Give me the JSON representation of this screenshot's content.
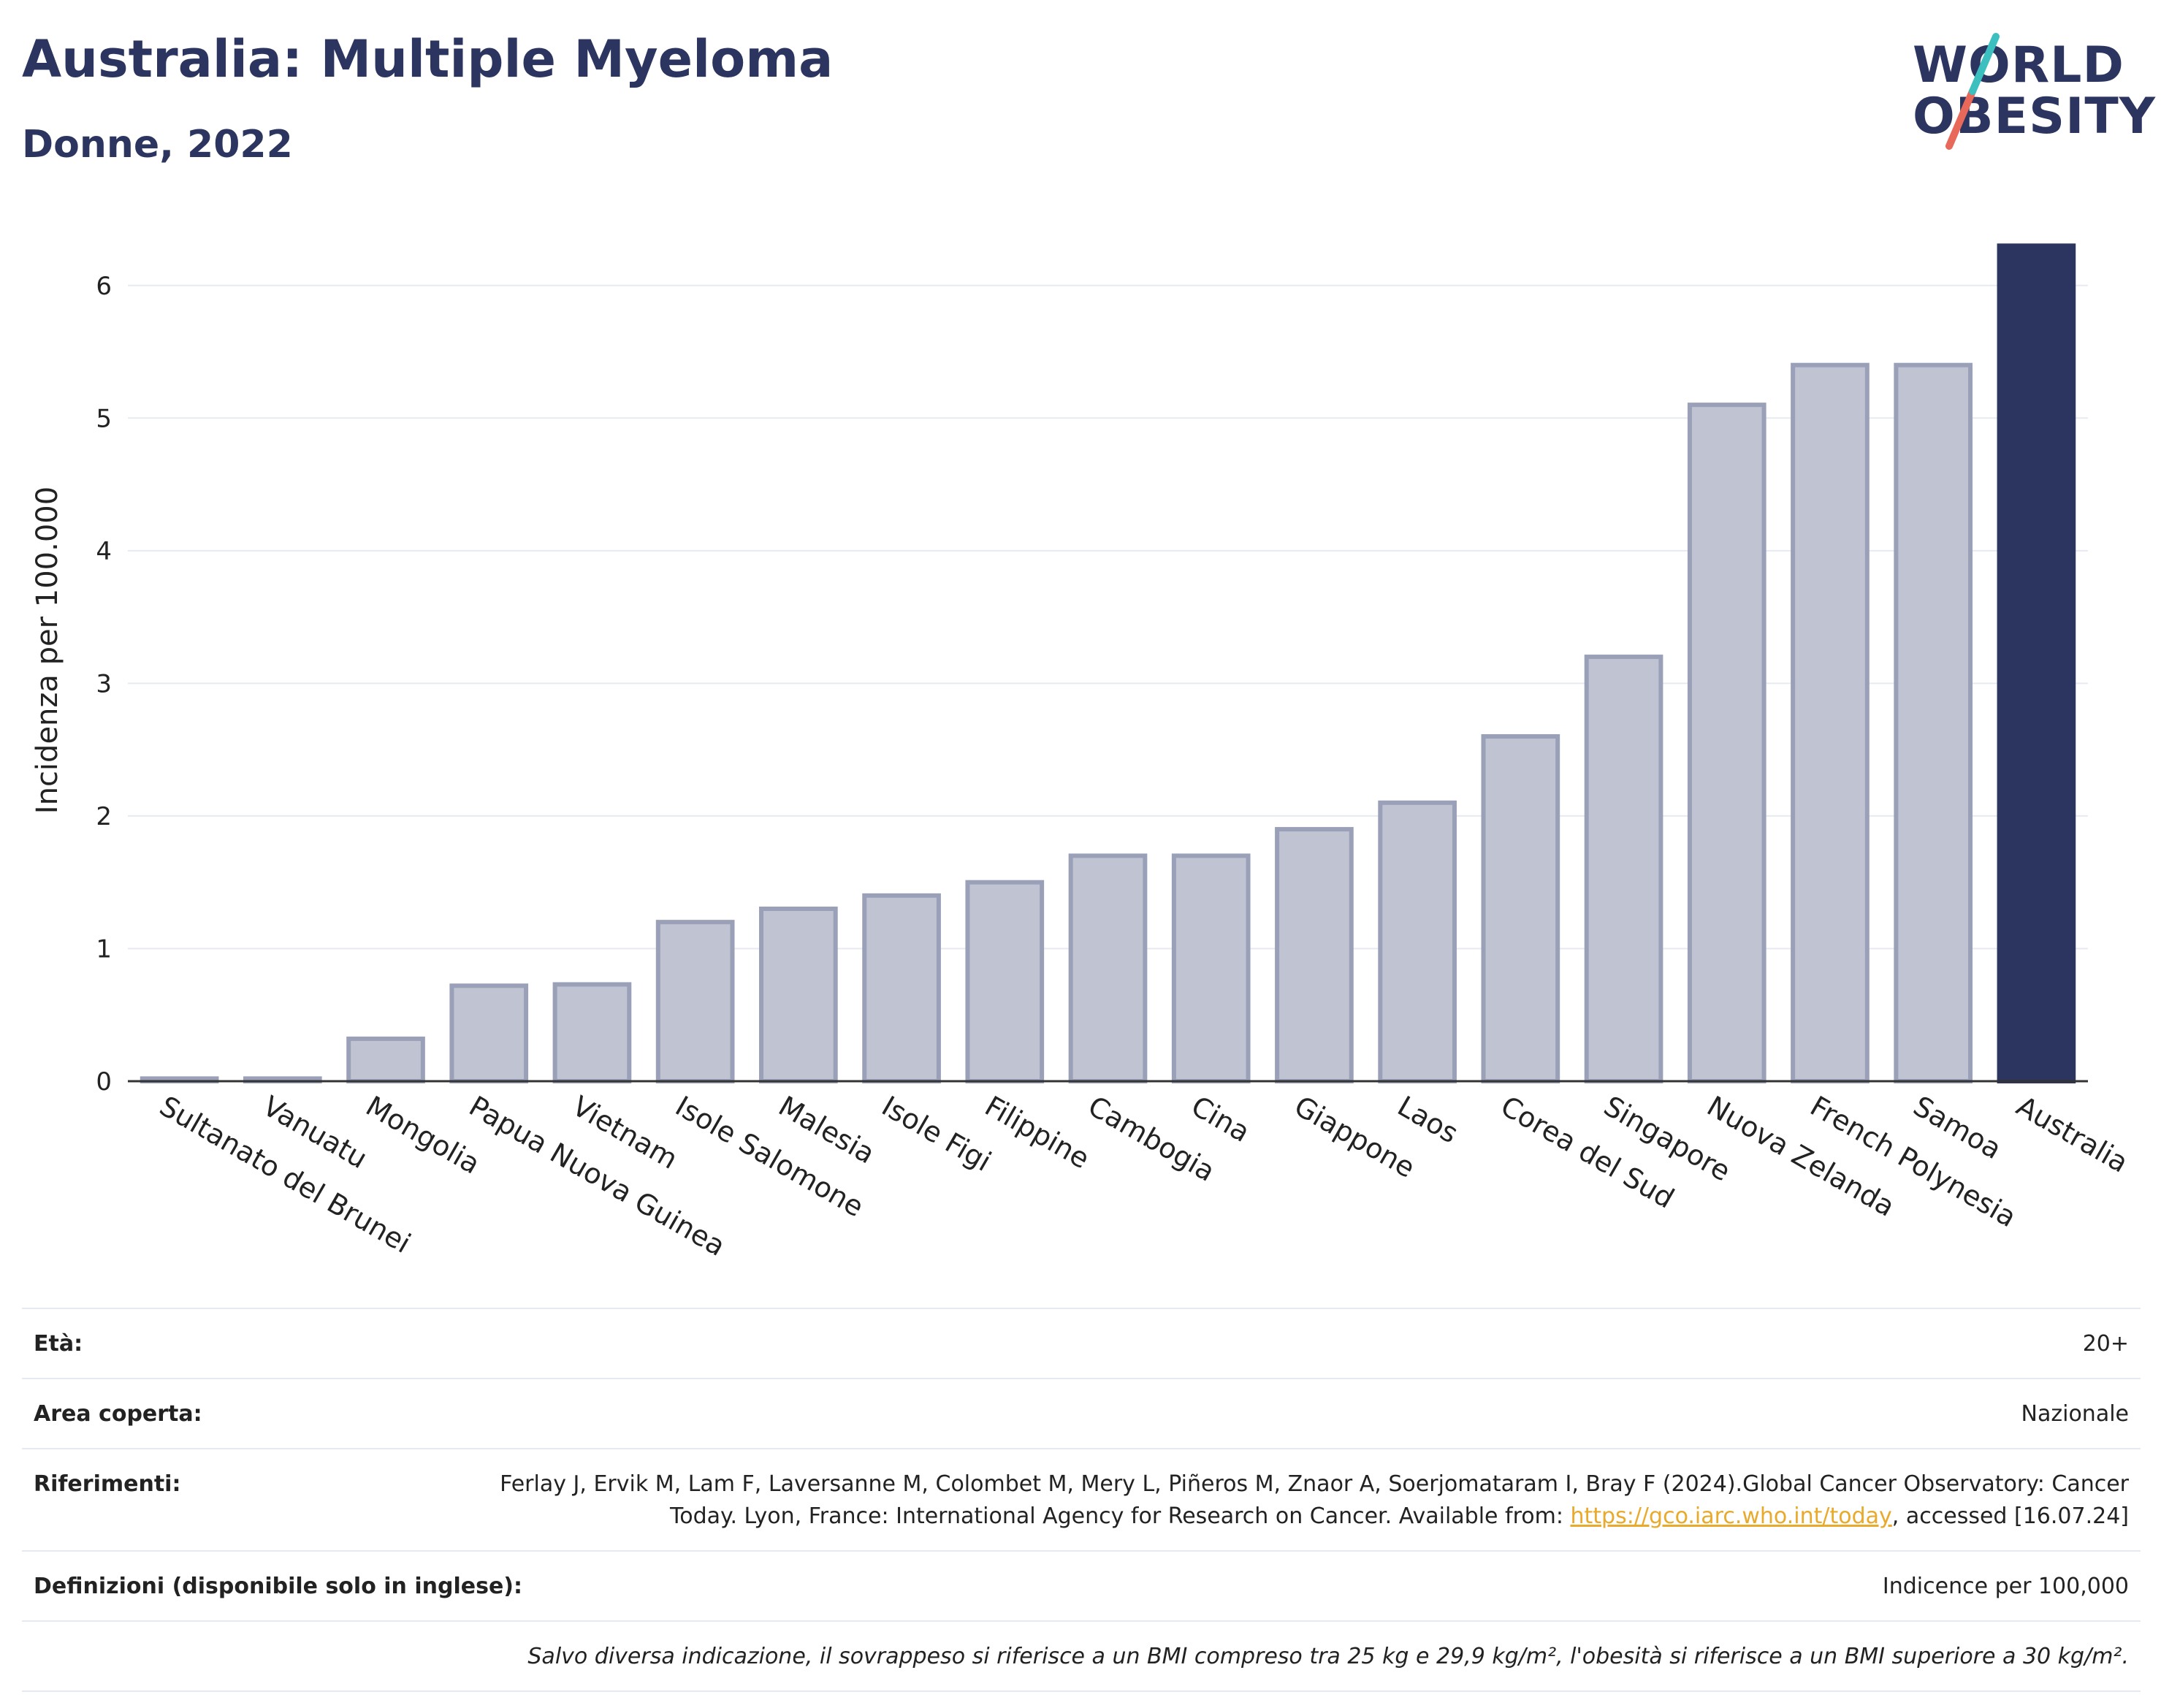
{
  "header": {
    "title": "Australia: Multiple Myeloma",
    "subtitle": "Donne, 2022"
  },
  "logo": {
    "line1": "WORLD",
    "line2": "OBESITY"
  },
  "chart_data": {
    "type": "bar",
    "ylabel": "Incidenza per 100.000",
    "xlabel": "",
    "ylim": [
      0,
      6.5
    ],
    "yticks": [
      0,
      1,
      2,
      3,
      4,
      5,
      6
    ],
    "grid": true,
    "categories": [
      "Sultanato del Brunei",
      "Vanuatu",
      "Mongolia",
      "Papua Nuova Guinea",
      "Vietnam",
      "Isole Salomone",
      "Malesia",
      "Isole Figi",
      "Filippine",
      "Cambogia",
      "Cina",
      "Giappone",
      "Laos",
      "Corea del Sud",
      "Singapore",
      "Nuova Zelanda",
      "French Polynesia",
      "Samoa",
      "Australia"
    ],
    "values": [
      0.02,
      0.02,
      0.32,
      0.72,
      0.73,
      1.2,
      1.3,
      1.4,
      1.5,
      1.7,
      1.7,
      1.9,
      2.1,
      2.6,
      3.2,
      5.1,
      5.4,
      5.4,
      6.3
    ],
    "highlight": "Australia",
    "colors": {
      "highlight": "#2b3560",
      "other_fill": "#c0c3d1",
      "other_stroke": "#9aa0b8"
    }
  },
  "info": {
    "age_label": "Età:",
    "age_value": "20+",
    "area_label": "Area coperta:",
    "area_value": "Nazionale",
    "refs_label": "Riferimenti:",
    "refs_text": "Ferlay J, Ervik M, Lam F, Laversanne M, Colombet M, Mery L, Piñeros M, Znaor A, Soerjomataram I, Bray F (2024).Global Cancer Observatory: Cancer Today. Lyon, France: International Agency for Research on Cancer. Available from:",
    "refs_link": "https://gco.iarc.who.int/today",
    "refs_tail": ", accessed [16.07.24]",
    "def_label": "Definizioni (disponibile solo in inglese):",
    "def_value": "Indicence per 100,000",
    "note": "Salvo diversa indicazione, il sovrappeso si riferisce a un BMI compreso tra 25 kg e 29,9 kg/m², l'obesità si riferisce a un BMI superiore a 30 kg/m²."
  }
}
